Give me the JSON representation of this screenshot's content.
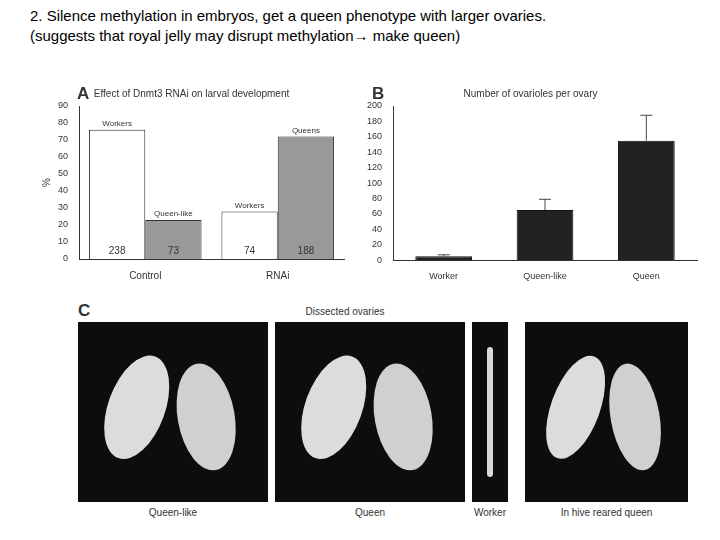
{
  "header": {
    "lines": [
      "2. Silence methylation in embryos, get a queen phenotype with larger ovaries.",
      "(suggests that royal jelly may disrupt methylation→ make queen)"
    ]
  },
  "chart_data": [
    {
      "panel": "A",
      "type": "bar",
      "title": "Effect of Dnmt3 RNAi on larval development",
      "y_label": "%",
      "categories": [
        "Control",
        "RNAi"
      ],
      "series": [
        {
          "labels": [
            "Workers",
            "Workers"
          ],
          "color": "#ffffff",
          "values": [
            76,
            28
          ],
          "counts": [
            238,
            74
          ]
        },
        {
          "labels": [
            "Queen-like",
            "Queens"
          ],
          "color": "#999999",
          "values": [
            23,
            72
          ],
          "counts": [
            73,
            188
          ]
        }
      ],
      "ylim": [
        0,
        90
      ],
      "yticks": [
        0,
        10,
        20,
        30,
        40,
        50,
        60,
        70,
        80,
        90
      ],
      "grid": false
    },
    {
      "panel": "B",
      "type": "bar",
      "title": "Number of ovarioles per ovary",
      "categories": [
        "Worker",
        "Queen-like",
        "Queen"
      ],
      "values": [
        5,
        65,
        155
      ],
      "errors": [
        2,
        14,
        33
      ],
      "color": "#222222",
      "ylim": [
        0,
        200
      ],
      "yticks": [
        0,
        20,
        40,
        60,
        80,
        100,
        120,
        140,
        160,
        180,
        200
      ],
      "grid": false
    }
  ],
  "photos": {
    "panel": "C",
    "title": "Dissected ovaries",
    "captions": [
      "Queen-like",
      "Queen",
      "Worker",
      "In hive reared queen"
    ]
  }
}
